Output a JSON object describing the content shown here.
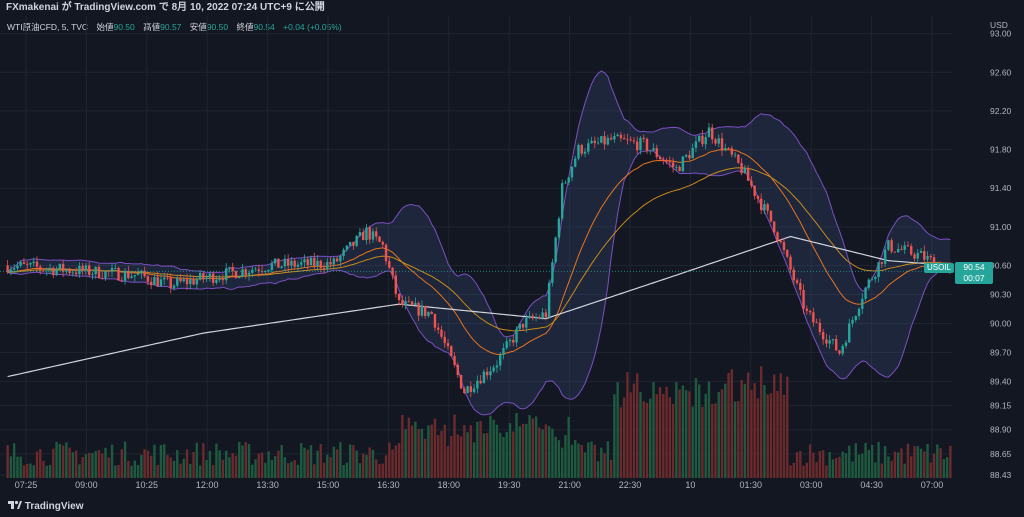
{
  "header": {
    "caption": "FXmakenai が TradingView.com で 8月 10, 2022 07:24 UTC+9 に公開"
  },
  "legend": {
    "symbol": "WTI原油CFD, 5, TVC",
    "open_label": "始値",
    "open": "90.50",
    "high_label": "高値",
    "high": "90.57",
    "low_label": "安値",
    "low": "90.50",
    "close_label": "終値",
    "close": "90.54",
    "change": "+0.04 (+0.05%)"
  },
  "price_tag": {
    "symbol": "USOIL",
    "price": "90.54",
    "countdown": "00:07"
  },
  "footer": {
    "logo": "TradingView"
  },
  "colors": {
    "up": "#26a69a",
    "down": "#ef5350",
    "background": "#131722",
    "bollinger_band": "#7b4fc2",
    "sma_long": "#d1d4dc",
    "ma_mid": "#e8731f",
    "ma_slow": "#c98b1c"
  },
  "chart_data": {
    "type": "candlestick",
    "currency": "USD",
    "y_ticks": [
      "93.00",
      "92.60",
      "92.20",
      "91.80",
      "91.40",
      "91.00",
      "90.60",
      "90.30",
      "90.00",
      "89.70",
      "89.40",
      "89.15",
      "88.90",
      "88.65",
      "88.43"
    ],
    "y_tick_values": [
      93.0,
      92.6,
      92.2,
      91.8,
      91.4,
      91.0,
      90.6,
      90.3,
      90.0,
      89.7,
      89.4,
      89.15,
      88.9,
      88.65,
      88.43
    ],
    "x_ticks": [
      "07:25",
      "09:00",
      "10:25",
      "12:00",
      "13:30",
      "15:00",
      "16:30",
      "18:00",
      "19:30",
      "21:00",
      "22:30",
      "10",
      "01:30",
      "03:00",
      "04:30",
      "07:00"
    ],
    "ylim": [
      88.4,
      93.1
    ],
    "bar_count": 290,
    "close_anchors": [
      [
        0,
        90.6
      ],
      [
        20,
        90.55
      ],
      [
        40,
        90.5
      ],
      [
        50,
        90.4
      ],
      [
        65,
        90.5
      ],
      [
        80,
        90.6
      ],
      [
        100,
        90.62
      ],
      [
        110,
        90.95
      ],
      [
        115,
        90.8
      ],
      [
        120,
        90.2
      ],
      [
        130,
        90.1
      ],
      [
        140,
        89.3
      ],
      [
        150,
        89.6
      ],
      [
        158,
        90.0
      ],
      [
        165,
        90.1
      ],
      [
        170,
        91.4
      ],
      [
        175,
        91.8
      ],
      [
        185,
        91.9
      ],
      [
        195,
        91.85
      ],
      [
        205,
        91.6
      ],
      [
        215,
        92.0
      ],
      [
        225,
        91.6
      ],
      [
        235,
        91.0
      ],
      [
        245,
        90.1
      ],
      [
        255,
        89.7
      ],
      [
        262,
        90.3
      ],
      [
        270,
        90.8
      ],
      [
        280,
        90.7
      ],
      [
        289,
        90.54
      ]
    ],
    "series": [
      {
        "name": "",
        "role": "sma_long",
        "anchors": [
          [
            0,
            89.45
          ],
          [
            60,
            89.9
          ],
          [
            120,
            90.2
          ],
          [
            165,
            90.05
          ],
          [
            205,
            90.5
          ],
          [
            240,
            90.9
          ],
          [
            270,
            90.65
          ],
          [
            289,
            90.6
          ]
        ]
      }
    ]
  }
}
